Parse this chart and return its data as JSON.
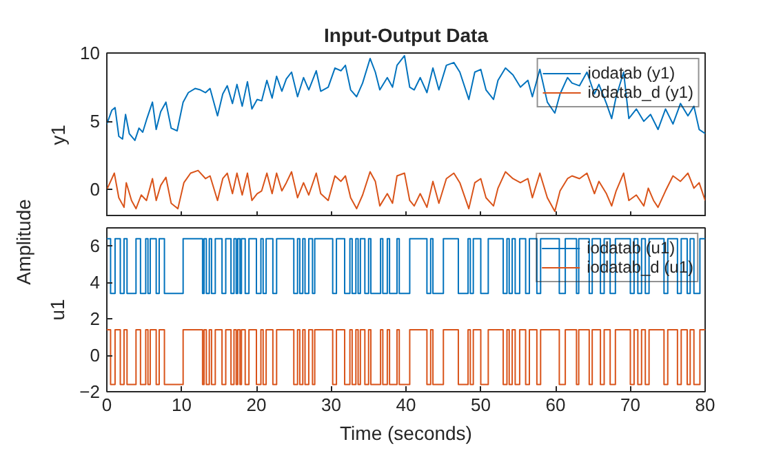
{
  "chart_data": [
    {
      "type": "line",
      "title": "Input-Output Data",
      "ylabel": "y1",
      "annotations": [
        "Amplitude"
      ],
      "xlim": [
        0,
        80
      ],
      "xticks": [
        0,
        10,
        20,
        30,
        40,
        50,
        60,
        70,
        80
      ],
      "ylim": [
        -2,
        10
      ],
      "yticks": [
        0,
        5,
        10
      ],
      "tick_labels": "y",
      "legend": "top right",
      "grid": false,
      "series": [
        {
          "name": "iodatab (y1)",
          "color": "#0072bd",
          "x": [
            0,
            0.66,
            1.1,
            1.6,
            2.1,
            2.5,
            3.0,
            3.75,
            4.3,
            4.8,
            5.3,
            6.1,
            6.6,
            7.2,
            7.9,
            8.6,
            9.4,
            10.2,
            10.9,
            11.8,
            12.5,
            13.2,
            13.8,
            14.8,
            15.5,
            16.1,
            16.8,
            17.4,
            18.1,
            18.8,
            19.4,
            20.1,
            20.7,
            21.4,
            22.1,
            22.7,
            23.4,
            24.0,
            24.7,
            25.5,
            26.3,
            27.0,
            28.0,
            28.6,
            29.6,
            30.5,
            31.3,
            31.9,
            32.6,
            33.4,
            34.2,
            35.2,
            35.9,
            36.5,
            37.5,
            38.2,
            38.8,
            39.8,
            40.5,
            41.1,
            41.9,
            42.8,
            43.6,
            44.4,
            45.4,
            46.4,
            47.2,
            48.4,
            49.2,
            50.0,
            50.7,
            51.7,
            52.3,
            53.3,
            54.3,
            55.3,
            56.3,
            56.9,
            57.9,
            58.9,
            59.9,
            60.6,
            61.6,
            62.2,
            63.2,
            64.2,
            65.2,
            65.8,
            66.8,
            67.5,
            68.1,
            69.1,
            69.8,
            70.8,
            71.8,
            72.7,
            73.7,
            74.7,
            75.7,
            76.7,
            77.7,
            78.5,
            79.2,
            80
          ],
          "values": [
            4.8,
            5.8,
            6.0,
            3.9,
            3.7,
            5.5,
            4.1,
            3.6,
            4.5,
            4.2,
            5.1,
            6.4,
            4.4,
            5.7,
            6.4,
            4.5,
            4.3,
            6.4,
            7.1,
            7.4,
            7.3,
            7.1,
            7.4,
            5.4,
            7.0,
            7.6,
            6.3,
            7.7,
            6.1,
            7.9,
            5.9,
            6.6,
            6.5,
            8.0,
            6.7,
            8.3,
            7.2,
            8.1,
            8.6,
            6.8,
            8.2,
            7.3,
            8.7,
            7.2,
            7.5,
            8.9,
            8.7,
            9.1,
            7.3,
            6.8,
            7.8,
            9.6,
            8.6,
            7.3,
            8.2,
            7.5,
            9.1,
            9.8,
            7.5,
            7.3,
            8.2,
            7.1,
            8.9,
            7.3,
            9.1,
            9.3,
            8.6,
            6.6,
            8.6,
            8.8,
            7.3,
            6.6,
            8.0,
            8.9,
            8.4,
            7.5,
            8.0,
            6.8,
            8.8,
            6.4,
            5.6,
            7.0,
            8.2,
            7.8,
            7.6,
            8.6,
            7.0,
            7.7,
            6.3,
            5.2,
            6.8,
            8.6,
            5.2,
            5.9,
            5.0,
            5.5,
            4.4,
            5.9,
            4.8,
            6.3,
            5.4,
            6.1,
            4.4,
            4.1
          ]
        },
        {
          "name": "iodatab_d (y1)",
          "color": "#d95319",
          "x": [
            0,
            1.0,
            1.6,
            2.3,
            2.6,
            3.3,
            3.9,
            4.6,
            5.3,
            6.1,
            6.6,
            7.2,
            7.9,
            8.6,
            9.5,
            10.3,
            11.2,
            12.2,
            13.2,
            13.8,
            14.8,
            15.5,
            16.1,
            16.8,
            17.4,
            18.1,
            18.8,
            19.4,
            20.1,
            20.7,
            21.4,
            22.1,
            22.7,
            23.4,
            24.0,
            24.7,
            25.5,
            26.3,
            27.0,
            28.0,
            28.6,
            29.6,
            30.5,
            31.3,
            31.9,
            32.6,
            33.4,
            34.2,
            35.2,
            35.9,
            36.5,
            37.5,
            38.2,
            38.8,
            39.8,
            40.5,
            41.1,
            41.9,
            42.8,
            43.6,
            44.4,
            45.4,
            46.4,
            47.2,
            48.4,
            49.2,
            50.0,
            50.7,
            51.7,
            52.3,
            53.3,
            54.3,
            55.3,
            56.3,
            56.9,
            57.9,
            58.9,
            59.9,
            60.6,
            61.6,
            62.2,
            63.2,
            64.2,
            65.2,
            65.8,
            66.8,
            67.5,
            68.1,
            69.1,
            69.8,
            70.8,
            71.8,
            72.4,
            73.1,
            73.7,
            74.7,
            75.7,
            76.7,
            77.7,
            78.5,
            79.2,
            80
          ],
          "values": [
            0,
            1.2,
            -0.6,
            -1.3,
            0.5,
            -0.8,
            -1.4,
            -0.4,
            -0.8,
            0.8,
            -0.8,
            0.3,
            0.9,
            -1.0,
            -1.4,
            0.5,
            1.2,
            1.4,
            0.8,
            1.0,
            -0.8,
            0.8,
            1.2,
            -0.3,
            1.2,
            -0.4,
            1.2,
            -0.8,
            -0.3,
            -0.1,
            1.2,
            -0.3,
            1.2,
            -0.1,
            0.5,
            1.3,
            -0.6,
            0.5,
            -0.4,
            1.2,
            -0.3,
            -0.8,
            1.0,
            0.6,
            1.0,
            -0.6,
            -1.4,
            -0.4,
            1.3,
            0.6,
            -1.2,
            -0.3,
            -1.0,
            1.0,
            1.2,
            -0.8,
            -1.2,
            -0.3,
            -1.3,
            0.6,
            -1.0,
            0.8,
            1.2,
            0.5,
            -1.4,
            0.5,
            0.8,
            -0.6,
            -1.2,
            0.1,
            1.3,
            0.8,
            0.5,
            0.8,
            -0.6,
            1.2,
            -0.6,
            -1.6,
            -0.1,
            0.8,
            1.0,
            0.8,
            1.2,
            -0.3,
            0.6,
            -0.3,
            -1.2,
            -0.1,
            1.2,
            -0.8,
            -0.4,
            -1.2,
            0.1,
            -0.8,
            -1.3,
            -0.1,
            1.0,
            0.6,
            1.2,
            0.1,
            0.5,
            -0.8
          ]
        }
      ]
    },
    {
      "type": "step",
      "ylabel": "u1",
      "xlabel": "Time (seconds)",
      "xlim": [
        0,
        80
      ],
      "xticks": [
        0,
        10,
        20,
        30,
        40,
        50,
        60,
        70,
        80
      ],
      "ylim": [
        -2,
        7
      ],
      "yticks": [
        -2,
        0,
        2,
        4,
        6
      ],
      "legend": "top right",
      "grid": false,
      "x": [
        0,
        0.5,
        1.1,
        1.8,
        2.3,
        2.7,
        3.9,
        4.5,
        5.2,
        5.5,
        5.8,
        6.6,
        7.0,
        7.7,
        10.2,
        12.8,
        13.0,
        13.3,
        13.7,
        14.0,
        14.5,
        15.4,
        15.9,
        16.6,
        17.0,
        17.3,
        17.5,
        17.8,
        18.0,
        18.5,
        19.0,
        20.0,
        20.6,
        20.9,
        21.3,
        22.2,
        22.7,
        25.0,
        25.5,
        25.8,
        26.2,
        26.5,
        27.0,
        27.5,
        27.8,
        30.2,
        30.7,
        31.8,
        32.5,
        32.8,
        33.3,
        33.6,
        33.9,
        34.5,
        35.0,
        35.3,
        36.6,
        36.9,
        37.5,
        37.8,
        38.8,
        39.1,
        40.5,
        42.8,
        43.3,
        43.6,
        45.0,
        47.0,
        48.3,
        48.6,
        49.0,
        50.0,
        51.0,
        53.0,
        53.5,
        53.8,
        54.2,
        54.6,
        55.2,
        56.0,
        56.5,
        57.5,
        58.0,
        60.5,
        61.3,
        62.8,
        63.1,
        64.5,
        64.9,
        66.0,
        66.5,
        67.3,
        68.0,
        70.0,
        70.5,
        71.0,
        71.5,
        72.0,
        72.5,
        74.5,
        75.0,
        76.3,
        76.8,
        77.6,
        78.0,
        78.5,
        79.3,
        80
      ],
      "series": [
        {
          "name": "iodatab (u1)",
          "color": "#0072bd",
          "values": [
            6.4,
            3.4,
            6.4,
            3.4,
            6.4,
            3.4,
            6.4,
            3.4,
            6.4,
            3.4,
            6.4,
            3.4,
            6.4,
            3.4,
            6.4,
            3.4,
            6.4,
            3.4,
            6.4,
            3.4,
            6.4,
            3.4,
            6.4,
            3.4,
            6.4,
            3.4,
            6.4,
            3.4,
            6.4,
            3.4,
            6.4,
            3.4,
            6.4,
            3.4,
            6.4,
            3.4,
            6.4,
            3.4,
            6.4,
            3.4,
            6.4,
            3.4,
            6.4,
            3.4,
            6.4,
            3.4,
            6.4,
            3.4,
            6.4,
            3.4,
            6.4,
            3.4,
            6.4,
            3.4,
            6.4,
            3.4,
            6.4,
            3.4,
            6.4,
            3.4,
            6.4,
            3.4,
            6.4,
            3.4,
            6.4,
            3.4,
            6.4,
            3.4,
            6.4,
            3.4,
            6.4,
            3.4,
            6.4,
            3.4,
            6.4,
            3.4,
            6.4,
            3.4,
            6.4,
            3.4,
            6.4,
            3.4,
            6.4,
            3.4,
            6.4,
            3.4,
            6.4,
            3.4,
            6.4,
            3.4,
            6.4,
            3.4,
            6.4,
            3.4,
            6.4,
            3.4,
            6.4,
            3.4,
            6.4,
            3.4,
            6.4,
            3.4,
            6.4,
            3.4,
            6.4,
            3.4,
            6.4,
            6.4
          ]
        },
        {
          "name": "iodatab_d (u1)",
          "color": "#d95319",
          "values": [
            1.4,
            -1.6,
            1.4,
            -1.6,
            1.4,
            -1.6,
            1.4,
            -1.6,
            1.4,
            -1.6,
            1.4,
            -1.6,
            1.4,
            -1.6,
            1.4,
            -1.6,
            1.4,
            -1.6,
            1.4,
            -1.6,
            1.4,
            -1.6,
            1.4,
            -1.6,
            1.4,
            -1.6,
            1.4,
            -1.6,
            1.4,
            -1.6,
            1.4,
            -1.6,
            1.4,
            -1.6,
            1.4,
            -1.6,
            1.4,
            -1.6,
            1.4,
            -1.6,
            1.4,
            -1.6,
            1.4,
            -1.6,
            1.4,
            -1.6,
            1.4,
            -1.6,
            1.4,
            -1.6,
            1.4,
            -1.6,
            1.4,
            -1.6,
            1.4,
            -1.6,
            1.4,
            -1.6,
            1.4,
            -1.6,
            1.4,
            -1.6,
            1.4,
            -1.6,
            1.4,
            -1.6,
            1.4,
            -1.6,
            1.4,
            -1.6,
            1.4,
            -1.6,
            1.4,
            -1.6,
            1.4,
            -1.6,
            1.4,
            -1.6,
            1.4,
            -1.6,
            1.4,
            -1.6,
            1.4,
            -1.6,
            1.4,
            -1.6,
            1.4,
            -1.6,
            1.4,
            -1.6,
            1.4,
            -1.6,
            1.4,
            -1.6,
            1.4,
            -1.6,
            1.4,
            -1.6,
            1.4,
            -1.6,
            1.4,
            -1.6,
            1.4,
            -1.6,
            1.4,
            -1.6,
            1.4,
            1.4
          ]
        }
      ]
    }
  ]
}
